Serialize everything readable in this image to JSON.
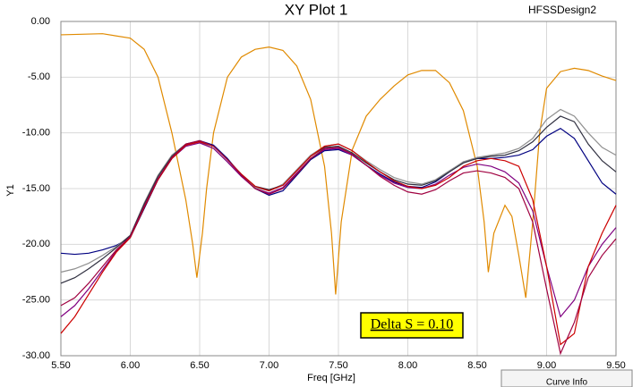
{
  "chart_data": {
    "type": "line",
    "title": "XY Plot 1",
    "subtitle": "HFSSDesign2",
    "x_label": "Freq [GHz]",
    "y_label": "Y1",
    "annotation": "Delta S = 0.10",
    "legend_title": "Curve Info",
    "xlim": [
      5.5,
      9.5
    ],
    "ylim": [
      -30,
      0
    ],
    "grid": true,
    "xticks": [
      {
        "value": 5.5,
        "label": "5.50"
      },
      {
        "value": 6,
        "label": "6.00"
      },
      {
        "value": 6.5,
        "label": "6.50"
      },
      {
        "value": 7,
        "label": "7.00"
      },
      {
        "value": 7.5,
        "label": "7.50"
      },
      {
        "value": 8,
        "label": "8.00"
      },
      {
        "value": 8.5,
        "label": "8.50"
      },
      {
        "value": 9,
        "label": "9.00"
      },
      {
        "value": 9.5,
        "label": "9.50"
      }
    ],
    "yticks": [
      {
        "value": 0,
        "label": "0.00"
      },
      {
        "value": -5,
        "label": "-5.00"
      },
      {
        "value": -10,
        "label": "-10.00"
      },
      {
        "value": -15,
        "label": "-15.00"
      },
      {
        "value": -20,
        "label": "-20.00"
      },
      {
        "value": -25,
        "label": "-25.00"
      },
      {
        "value": -30,
        "label": "-30.00"
      }
    ],
    "x": [
      5.5,
      5.6,
      5.7,
      5.8,
      5.9,
      6.0,
      6.1,
      6.2,
      6.3,
      6.4,
      6.5,
      6.6,
      6.7,
      6.8,
      6.9,
      7.0,
      7.1,
      7.2,
      7.3,
      7.4,
      7.5,
      7.6,
      7.7,
      7.8,
      7.9,
      8.0,
      8.1,
      8.2,
      8.3,
      8.4,
      8.5,
      8.6,
      8.7,
      8.8,
      8.9,
      9.0,
      9.1,
      9.2,
      9.3,
      9.4,
      9.5
    ],
    "series": [
      {
        "color": "#e08a00",
        "x": [
          5.5,
          5.8,
          6.0,
          6.1,
          6.2,
          6.3,
          6.4,
          6.45,
          6.48,
          6.52,
          6.55,
          6.6,
          6.7,
          6.8,
          6.9,
          7.0,
          7.1,
          7.2,
          7.3,
          7.4,
          7.45,
          7.48,
          7.52,
          7.6,
          7.7,
          7.8,
          7.9,
          8.0,
          8.1,
          8.2,
          8.3,
          8.4,
          8.5,
          8.55,
          8.58,
          8.62,
          8.7,
          8.75,
          8.8,
          8.85,
          8.9,
          8.95,
          9.0,
          9.1,
          9.2,
          9.3,
          9.4,
          9.5
        ],
        "values": [
          -1.2,
          -1.1,
          -1.5,
          -2.5,
          -5,
          -10,
          -16,
          -20,
          -23,
          -19,
          -15,
          -10,
          -5,
          -3.2,
          -2.5,
          -2.3,
          -2.6,
          -4,
          -7,
          -13,
          -19,
          -24.5,
          -18,
          -11.5,
          -8.5,
          -7,
          -5.8,
          -4.8,
          -4.4,
          -4.4,
          -5.5,
          -8,
          -13,
          -18,
          -22.5,
          -19,
          -16.5,
          -17.5,
          -21,
          -24.8,
          -18,
          -10,
          -6,
          -4.5,
          -4.2,
          -4.4,
          -4.9,
          -5.3
        ]
      },
      {
        "color": "#000080",
        "values": [
          -20.8,
          -20.9,
          -20.8,
          -20.5,
          -20.1,
          -19.4,
          -16.8,
          -14.2,
          -12.3,
          -11.1,
          -10.7,
          -11.1,
          -12.3,
          -13.8,
          -15.0,
          -15.6,
          -15.2,
          -13.8,
          -12.4,
          -11.6,
          -11.5,
          -12.0,
          -12.9,
          -13.7,
          -14.4,
          -14.8,
          -14.9,
          -14.4,
          -13.5,
          -12.6,
          -12.3,
          -12.3,
          -12.2,
          -12.0,
          -11.5,
          -10.3,
          -9.6,
          -10.5,
          -12.5,
          -14.5,
          -15.5
        ]
      },
      {
        "color": "#909090",
        "values": [
          -22.5,
          -22.2,
          -21.7,
          -21.0,
          -20.2,
          -19.2,
          -16.3,
          -13.8,
          -12.0,
          -11.0,
          -10.8,
          -11.4,
          -12.6,
          -13.9,
          -14.9,
          -15.2,
          -14.6,
          -13.3,
          -12.0,
          -11.2,
          -11.0,
          -11.6,
          -12.5,
          -13.3,
          -14.0,
          -14.4,
          -14.6,
          -14.2,
          -13.4,
          -12.6,
          -12.2,
          -12.0,
          -11.8,
          -11.4,
          -10.5,
          -8.8,
          -7.9,
          -8.5,
          -10.0,
          -11.3,
          -12.0
        ]
      },
      {
        "color": "#303040",
        "values": [
          -23.5,
          -23.0,
          -22.2,
          -21.3,
          -20.3,
          -19.2,
          -16.4,
          -13.9,
          -12.1,
          -11.0,
          -10.7,
          -11.2,
          -12.4,
          -13.7,
          -14.8,
          -15.1,
          -14.7,
          -13.4,
          -12.1,
          -11.3,
          -11.2,
          -11.8,
          -12.7,
          -13.5,
          -14.2,
          -14.6,
          -14.7,
          -14.3,
          -13.5,
          -12.7,
          -12.3,
          -12.1,
          -12.0,
          -11.6,
          -10.8,
          -9.5,
          -8.5,
          -9.0,
          -11.0,
          -12.5,
          -13.5
        ]
      },
      {
        "color": "#800080",
        "values": [
          -26.5,
          -25.5,
          -24.0,
          -22.3,
          -20.6,
          -19.3,
          -16.6,
          -14.1,
          -12.3,
          -11.2,
          -10.9,
          -11.4,
          -12.6,
          -13.9,
          -15.0,
          -15.4,
          -14.9,
          -13.6,
          -12.3,
          -11.5,
          -11.4,
          -12.0,
          -12.9,
          -13.8,
          -14.5,
          -14.9,
          -15.0,
          -14.6,
          -13.8,
          -13.1,
          -12.8,
          -13.0,
          -13.5,
          -14.5,
          -17.0,
          -22.0,
          -26.5,
          -25.0,
          -22.0,
          -20.0,
          -18.5
        ]
      },
      {
        "color": "#cc0000",
        "values": [
          -28.0,
          -26.5,
          -24.5,
          -22.5,
          -20.7,
          -19.4,
          -16.7,
          -14.2,
          -12.3,
          -11.1,
          -10.8,
          -11.2,
          -12.4,
          -13.7,
          -14.8,
          -15.2,
          -14.7,
          -13.4,
          -12.1,
          -11.2,
          -11.0,
          -11.6,
          -12.6,
          -13.5,
          -14.3,
          -14.8,
          -15.0,
          -14.7,
          -14.0,
          -13.0,
          -12.5,
          -12.3,
          -12.5,
          -13.0,
          -16.0,
          -22.0,
          -29.0,
          -28.0,
          -22.0,
          -19.0,
          -16.5
        ]
      },
      {
        "color": "#a00040",
        "values": [
          -25.5,
          -24.8,
          -23.5,
          -22.0,
          -20.5,
          -19.3,
          -16.6,
          -14.1,
          -12.2,
          -11.0,
          -10.7,
          -11.2,
          -12.4,
          -13.8,
          -15.0,
          -15.5,
          -15.0,
          -13.7,
          -12.3,
          -11.4,
          -11.3,
          -11.9,
          -12.9,
          -13.9,
          -14.7,
          -15.3,
          -15.5,
          -15.1,
          -14.3,
          -13.6,
          -13.4,
          -13.6,
          -14.0,
          -15.0,
          -18.0,
          -24.0,
          -29.8,
          -27.0,
          -23.0,
          -21.0,
          -19.5
        ]
      }
    ]
  }
}
